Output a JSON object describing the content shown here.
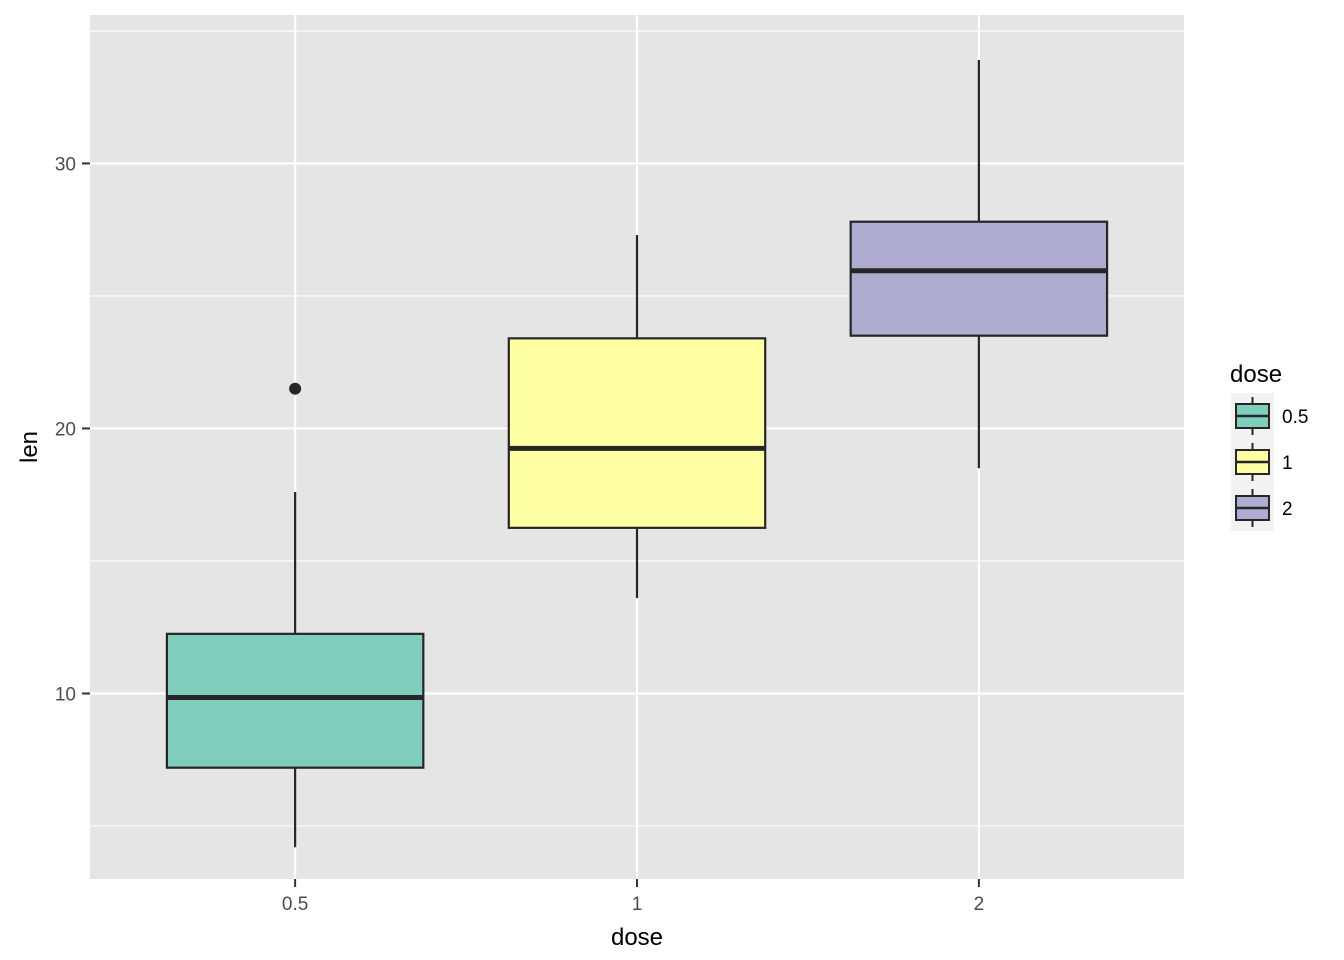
{
  "chart_data": {
    "type": "boxplot",
    "xlabel": "dose",
    "ylabel": "len",
    "categories": [
      "0.5",
      "1",
      "2"
    ],
    "ylim": [
      3.0,
      35.6
    ],
    "yticks": [
      10,
      20,
      30
    ],
    "grid": true,
    "legend": {
      "title": "dose",
      "placement": "right",
      "entries": [
        "0.5",
        "1",
        "2"
      ]
    },
    "colors": {
      "fills": [
        "#7fcdbb",
        "#ffffa3",
        "#b0abd1"
      ],
      "panel": "#e5e5e5",
      "grid": "#ffffff",
      "stroke": "#262626"
    },
    "boxes": [
      {
        "category": "0.5",
        "whisker_low": 4.2,
        "q1": 7.2,
        "median": 9.85,
        "q3": 12.25,
        "whisker_high": 17.6,
        "outliers": [
          21.5
        ]
      },
      {
        "category": "1",
        "whisker_low": 13.6,
        "q1": 16.25,
        "median": 19.25,
        "q3": 23.4,
        "whisker_high": 27.3,
        "outliers": []
      },
      {
        "category": "2",
        "whisker_low": 18.5,
        "q1": 23.5,
        "median": 25.95,
        "q3": 27.8,
        "whisker_high": 33.9,
        "outliers": []
      }
    ]
  }
}
